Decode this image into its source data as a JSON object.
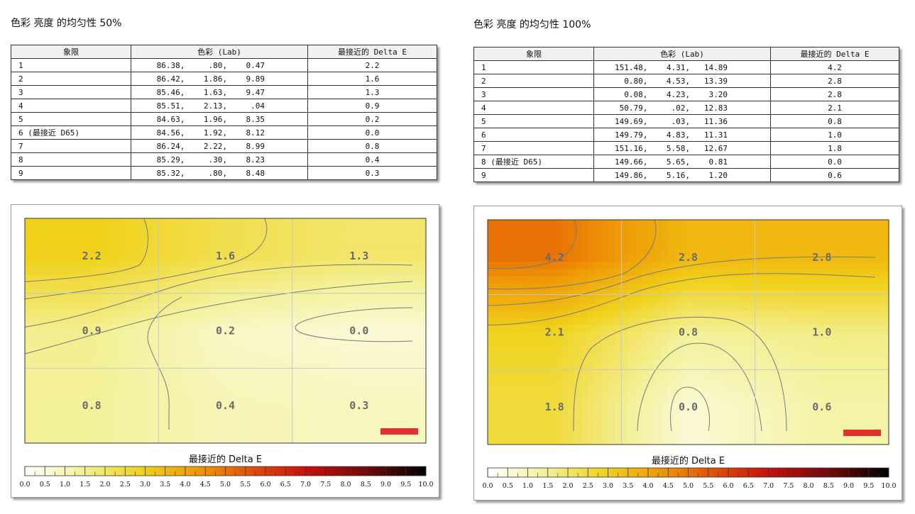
{
  "chart_data": [
    {
      "type": "heatmap",
      "title": "色彩 亮度 的均匀性 50%",
      "table": {
        "headers": [
          "象限",
          "色彩 (Lab)",
          "最接近的 Delta E"
        ],
        "rows": [
          {
            "quadrant": "1",
            "lab": "86.38,     .80,    0.47",
            "delta_e": "2.2"
          },
          {
            "quadrant": "2",
            "lab": "86.42,    1.86,    9.89",
            "delta_e": "1.6"
          },
          {
            "quadrant": "3",
            "lab": "85.46,    1.63,    9.47",
            "delta_e": "1.3"
          },
          {
            "quadrant": "4",
            "lab": "85.51,    2.13,     .04",
            "delta_e": "0.9"
          },
          {
            "quadrant": "5",
            "lab": "84.63,    1.96,    8.35",
            "delta_e": "0.2"
          },
          {
            "quadrant": "6 (最接近 D65)",
            "lab": "84.56,    1.92,    8.12",
            "delta_e": "0.0"
          },
          {
            "quadrant": "7",
            "lab": "86.24,    2.22,    8.99",
            "delta_e": "0.8"
          },
          {
            "quadrant": "8",
            "lab": "85.29,     .30,    8.23",
            "delta_e": "0.4"
          },
          {
            "quadrant": "9",
            "lab": "85.32,     .80,    8.48",
            "delta_e": "0.3"
          }
        ]
      },
      "grid_values": [
        [
          2.2,
          1.6,
          1.3
        ],
        [
          0.9,
          0.2,
          0.0
        ],
        [
          0.8,
          0.4,
          0.3
        ]
      ],
      "colorbar": {
        "label": "最接近的 Delta E",
        "ticks": [
          "0.0",
          "0.5",
          "1.0",
          "1.5",
          "2.0",
          "2.5",
          "3.0",
          "3.5",
          "4.0",
          "4.5",
          "5.0",
          "5.5",
          "6.0",
          "6.5",
          "7.0",
          "7.5",
          "8.0",
          "8.5",
          "9.0",
          "9.5",
          "10.0"
        ],
        "range": [
          0,
          10
        ]
      }
    },
    {
      "type": "heatmap",
      "title": "色彩 亮度 的均匀性 100%",
      "table": {
        "headers": [
          "象限",
          "色彩 (Lab)",
          "最接近的 Delta E"
        ],
        "rows": [
          {
            "quadrant": "1",
            "lab": "151.48,    4.31,   14.89",
            "delta_e": "4.2"
          },
          {
            "quadrant": "2",
            "lab": "0.80,    4.53,   13.39",
            "delta_e": "2.8"
          },
          {
            "quadrant": "3",
            "lab": "0.08,    4.23,    3.20",
            "delta_e": "2.8"
          },
          {
            "quadrant": "4",
            "lab": "50.79,     .02,   12.83",
            "delta_e": "2.1"
          },
          {
            "quadrant": "5",
            "lab": "149.69,     .03,   11.36",
            "delta_e": "0.8"
          },
          {
            "quadrant": "6",
            "lab": "149.79,    4.83,   11.31",
            "delta_e": "1.0"
          },
          {
            "quadrant": "7",
            "lab": "151.16,    5.58,   12.67",
            "delta_e": "1.8"
          },
          {
            "quadrant": "8 (最接近 D65)",
            "lab": "149.66,    5.65,    0.81",
            "delta_e": "0.0"
          },
          {
            "quadrant": "9",
            "lab": "149.86,    5.16,    1.20",
            "delta_e": "0.6"
          }
        ]
      },
      "grid_values": [
        [
          4.2,
          2.8,
          2.8
        ],
        [
          2.1,
          0.8,
          1.0
        ],
        [
          1.8,
          0.0,
          0.6
        ]
      ],
      "colorbar": {
        "label": "最接近的 Delta E",
        "ticks": [
          "0.0",
          "0.5",
          "1.0",
          "1.5",
          "2.0",
          "2.5",
          "3.0",
          "3.5",
          "4.0",
          "4.5",
          "5.0",
          "5.5",
          "6.0",
          "6.5",
          "7.0",
          "7.5",
          "8.0",
          "8.5",
          "9.0",
          "9.5",
          "10.0"
        ],
        "range": [
          0,
          10
        ]
      }
    }
  ],
  "colors": {
    "scale": [
      "#ffffff",
      "#f3f19a",
      "#f0d21c",
      "#ef9b06",
      "#e14a07",
      "#c40c0c",
      "#6d0a0a",
      "#000000"
    ],
    "brand_bar": "#e0312e",
    "contour": "#7a7a7a",
    "gridline": "#c8c8c8"
  }
}
